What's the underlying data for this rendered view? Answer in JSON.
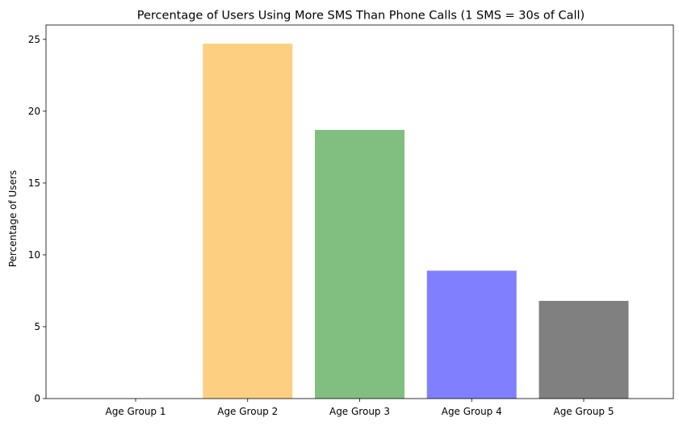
{
  "chart_data": {
    "type": "bar",
    "title": "Percentage of Users Using More SMS Than Phone Calls (1 SMS = 30s of Call)",
    "xlabel": "",
    "ylabel": "Percentage of Users",
    "categories": [
      "Age Group 1",
      "Age Group 2",
      "Age Group 3",
      "Age Group 4",
      "Age Group 5"
    ],
    "values": [
      0,
      24.7,
      18.7,
      8.9,
      6.8
    ],
    "colors": [
      "#ff0000",
      "#fdd081",
      "#80bf80",
      "#8080ff",
      "#808080"
    ],
    "ylim": [
      0,
      26
    ],
    "yticks": [
      0,
      5,
      10,
      15,
      20,
      25
    ],
    "grid": false,
    "legend": "none"
  }
}
